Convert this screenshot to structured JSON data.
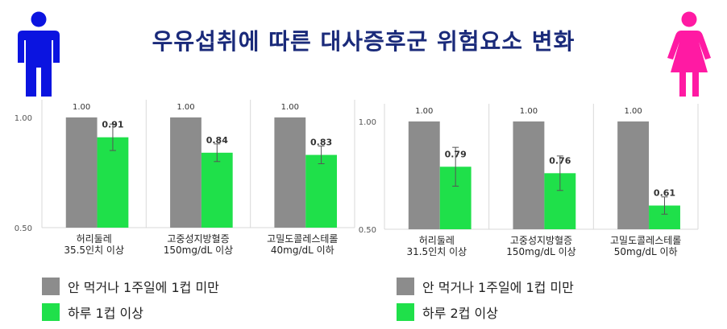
{
  "title": "우유섭취에 따른 대사증후군 위험요소 변화",
  "colors": {
    "reference": "#8c8c8c",
    "intake": "#1fe04a",
    "male_icon": "#0b14e0",
    "female_icon": "#ff1aa3",
    "title": "#1a2a7a"
  },
  "icons": {
    "male": "male-person-icon",
    "female": "female-person-icon"
  },
  "chart_data": [
    {
      "type": "bar",
      "group": "male",
      "categories": [
        "허리둘레\n35.5인치 이상",
        "고중성지방혈증\n150mg/dL 이상",
        "고밀도콜레스테롤\n40mg/dL 이하"
      ],
      "series": [
        {
          "name": "안 먹거나 1주일에 1컵 미만",
          "values": [
            1.0,
            1.0,
            1.0
          ]
        },
        {
          "name": "하루 1컵 이상",
          "values": [
            0.91,
            0.84,
            0.83
          ],
          "error": [
            0.06,
            0.04,
            0.04
          ]
        }
      ],
      "ylim": [
        0.5,
        1.0
      ],
      "yticks": [
        "0.50",
        "1.00"
      ],
      "reference_labels": [
        "1.00",
        "1.00",
        "1.00"
      ],
      "value_labels": [
        "0.91",
        "0.84",
        "0.83"
      ]
    },
    {
      "type": "bar",
      "group": "female",
      "categories": [
        "허리둘레\n31.5인치 이상",
        "고중성지방혈증\n150mg/dL 이상",
        "고밀도콜레스테롤\n50mg/dL 이하"
      ],
      "series": [
        {
          "name": "안 먹거나 1주일에 1컵 미만",
          "values": [
            1.0,
            1.0,
            1.0
          ]
        },
        {
          "name": "하루 2컵 이상",
          "values": [
            0.79,
            0.76,
            0.61
          ],
          "error": [
            0.09,
            0.08,
            0.04
          ]
        }
      ],
      "ylim": [
        0.5,
        1.0
      ],
      "yticks": [
        "0.50",
        "1.00"
      ],
      "reference_labels": [
        "1.00",
        "1.00",
        "1.00"
      ],
      "value_labels": [
        "0.79",
        "0.76",
        "0.61"
      ]
    }
  ],
  "legends": [
    {
      "items": [
        {
          "label": "안 먹거나 1주일에 1컵 미만"
        },
        {
          "label": "하루 1컵 이상"
        }
      ]
    },
    {
      "items": [
        {
          "label": "안 먹거나 1주일에 1컵 미만"
        },
        {
          "label": "하루 2컵 이상"
        }
      ]
    }
  ]
}
